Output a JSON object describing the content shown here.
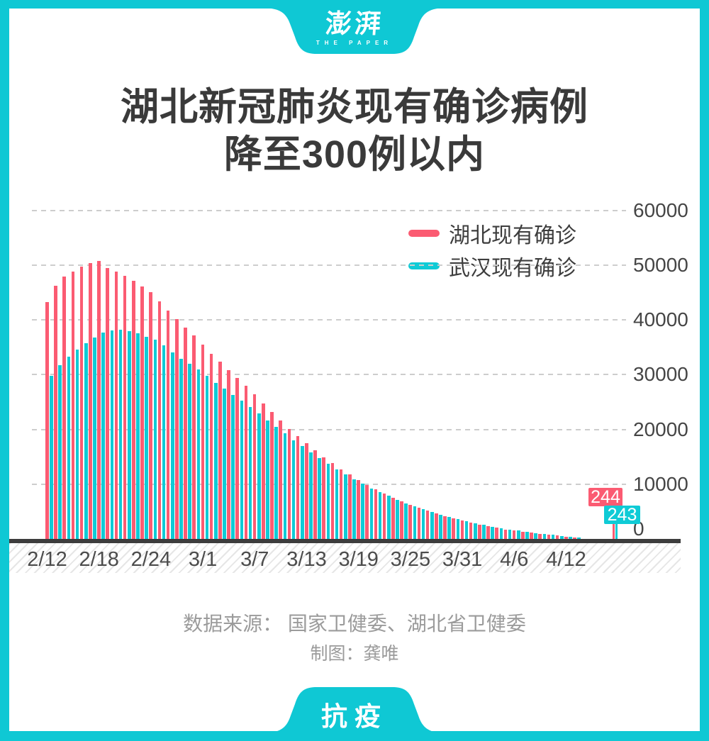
{
  "brand": {
    "logo_main": "澎湃",
    "logo_sub": "THE PAPER",
    "footer_badge": "抗疫"
  },
  "title": {
    "line1": "湖北新冠肺炎现有确诊病例",
    "line2": "降至300例以内"
  },
  "legend": [
    {
      "label": "湖北现有确诊",
      "color": "#fb5b72"
    },
    {
      "label": "武汉现有确诊",
      "color": "#0fcbd6"
    }
  ],
  "source": {
    "line1": "数据来源： 国家卫健委、湖北省卫健委",
    "line2": "制图：龚唯"
  },
  "colors": {
    "frame_teal": "#0fc8d4",
    "series_red": "#fb5b72",
    "series_cyan": "#0fcbd6",
    "title_text": "#3a3a3a",
    "axis_text": "#4c4c4c",
    "source_text": "#9b9b9b",
    "gridline": "#cdcdcd",
    "axis_line": "#3d3d3d"
  },
  "chart_data": {
    "type": "bar",
    "title": "湖北新冠肺炎现有确诊病例降至300例以内",
    "categories": [
      "2/12",
      "2/13",
      "2/14",
      "2/15",
      "2/16",
      "2/17",
      "2/18",
      "2/19",
      "2/20",
      "2/21",
      "2/22",
      "2/23",
      "2/24",
      "2/25",
      "2/26",
      "2/27",
      "2/28",
      "2/29",
      "3/1",
      "3/2",
      "3/3",
      "3/4",
      "3/5",
      "3/6",
      "3/7",
      "3/8",
      "3/9",
      "3/10",
      "3/11",
      "3/12",
      "3/13",
      "3/14",
      "3/15",
      "3/16",
      "3/17",
      "3/18",
      "3/19",
      "3/20",
      "3/21",
      "3/22",
      "3/23",
      "3/24",
      "3/25",
      "3/26",
      "3/27",
      "3/28",
      "3/29",
      "3/30",
      "3/31",
      "4/1",
      "4/2",
      "4/3",
      "4/4",
      "4/5",
      "4/6",
      "4/7",
      "4/8",
      "4/9",
      "4/10",
      "4/11",
      "4/12",
      "4/13",
      "4/14"
    ],
    "series": [
      {
        "name": "湖北现有确诊",
        "color": "#fb5b72",
        "values": [
          43500,
          46500,
          48200,
          49100,
          50000,
          50600,
          51000,
          49800,
          49100,
          48300,
          47400,
          46400,
          45300,
          43700,
          42000,
          40400,
          38900,
          37400,
          35700,
          34100,
          32600,
          31100,
          29700,
          28300,
          26700,
          25000,
          23400,
          21900,
          20400,
          19000,
          17700,
          16400,
          15200,
          14100,
          13000,
          12000,
          11000,
          10100,
          9300,
          8500,
          7800,
          7100,
          6500,
          5900,
          5400,
          4900,
          4400,
          4000,
          3600,
          3200,
          2900,
          2600,
          2300,
          2000,
          1800,
          1600,
          1400,
          1200,
          1000,
          850,
          700,
          500,
          244
        ]
      },
      {
        "name": "武汉现有确诊",
        "color": "#0fcbd6",
        "values": [
          30000,
          32000,
          33600,
          34800,
          36000,
          37000,
          38000,
          38300,
          38500,
          38200,
          37800,
          37200,
          36600,
          35600,
          34300,
          33200,
          32200,
          31200,
          30000,
          28800,
          27700,
          26600,
          25500,
          24400,
          23200,
          21900,
          20700,
          19500,
          18300,
          17200,
          16100,
          15000,
          14000,
          13000,
          12100,
          11200,
          10300,
          9500,
          8800,
          8100,
          7400,
          6800,
          6200,
          5700,
          5200,
          4700,
          4300,
          3900,
          3500,
          3100,
          2800,
          2500,
          2200,
          1950,
          1750,
          1550,
          1350,
          1150,
          980,
          840,
          690,
          480,
          243
        ]
      }
    ],
    "x_tick_labels": [
      "2/12",
      "2/18",
      "2/24",
      "3/1",
      "3/7",
      "3/13",
      "3/19",
      "3/25",
      "3/31",
      "4/6",
      "4/12"
    ],
    "y_ticks": [
      0,
      10000,
      20000,
      30000,
      40000,
      50000,
      60000
    ],
    "ylim": [
      0,
      60000
    ],
    "grid": "dashed-horizontal",
    "legend_position": "top-right",
    "end_labels": {
      "hubei": "244",
      "wuhan": "243"
    }
  }
}
